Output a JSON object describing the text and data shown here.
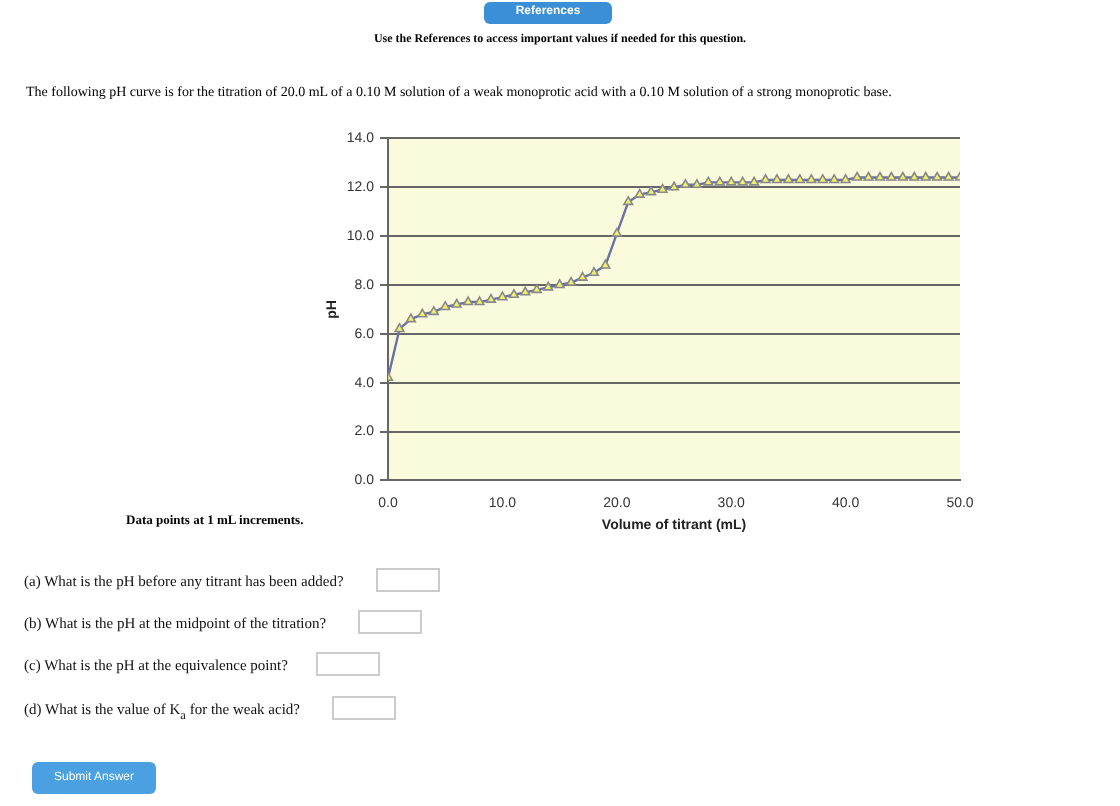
{
  "chart_data": {
    "type": "line",
    "xlabel": "Volume of titrant (mL)",
    "ylabel": "pH",
    "x": [
      0,
      1,
      2,
      3,
      4,
      5,
      6,
      7,
      8,
      9,
      10,
      11,
      12,
      13,
      14,
      15,
      16,
      17,
      18,
      19,
      20,
      21,
      22,
      23,
      24,
      25,
      26,
      27,
      28,
      29,
      30,
      31,
      32,
      33,
      34,
      35,
      36,
      37,
      38,
      39,
      40,
      41,
      42,
      43,
      44,
      45,
      46,
      47,
      48,
      49,
      50
    ],
    "series": [
      {
        "color": "#6a70a8",
        "values": [
          4.2,
          6.2,
          6.6,
          6.8,
          6.9,
          7.1,
          7.2,
          7.3,
          7.3,
          7.4,
          7.5,
          7.6,
          7.7,
          7.8,
          7.9,
          8.0,
          8.1,
          8.3,
          8.5,
          8.8,
          10.1,
          11.4,
          11.7,
          11.8,
          11.9,
          12.0,
          12.1,
          12.1,
          12.2,
          12.2,
          12.2,
          12.2,
          12.2,
          12.3,
          12.3,
          12.3,
          12.3,
          12.3,
          12.3,
          12.3,
          12.3,
          12.4,
          12.4,
          12.4,
          12.4,
          12.4,
          12.4,
          12.4,
          12.4,
          12.4,
          12.4
        ]
      }
    ],
    "xlim": [
      0,
      50
    ],
    "xticks": [
      {
        "value": 0,
        "label": "0.0"
      },
      {
        "value": 10,
        "label": "10.0"
      },
      {
        "value": 20,
        "label": "20.0"
      },
      {
        "value": 30,
        "label": "30.0"
      },
      {
        "value": 40,
        "label": "40.0"
      },
      {
        "value": 50,
        "label": "50.0"
      }
    ],
    "ylim": [
      0,
      14
    ],
    "yticks": [
      {
        "value": 0,
        "label": "0.0"
      },
      {
        "value": 2,
        "label": "2.0"
      },
      {
        "value": 4,
        "label": "4.0"
      },
      {
        "value": 6,
        "label": "6.0"
      },
      {
        "value": 8,
        "label": "8.0"
      },
      {
        "value": 10,
        "label": "10.0"
      },
      {
        "value": 12,
        "label": "12.0"
      },
      {
        "value": 14,
        "label": "14.0"
      }
    ],
    "grid": "y",
    "marker": "triangle",
    "line_style": "solid",
    "legend": false,
    "annotations": [
      "References",
      "Use the References to access important values if needed for this question.",
      "The following pH curve is for the titration of 20.0 mL of a 0.10 M solution of a weak monoprotic acid with a 0.10 M solution of a strong monoprotic base.",
      "Data points at 1 mL increments.",
      "(a) What is the pH before any titrant has been added?",
      "(b) What is the pH at the midpoint of the titration?",
      "(c) What is the pH at the equivalence point?",
      "(d) What is the value of K$_{a}$ for the weak acid?",
      "Submit Answer"
    ]
  }
}
